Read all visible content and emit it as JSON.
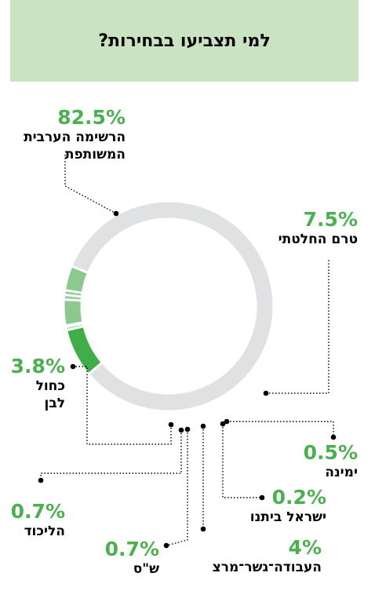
{
  "header": {
    "title": "למי תצביעו בבחירות?"
  },
  "colors": {
    "header_bg": "#c9e3c3",
    "accent": "#4caf50",
    "ring_base": "#e0e0e0"
  },
  "chart_data": {
    "type": "pie",
    "title": "למי תצביעו בבחירות?",
    "variant": "donut",
    "slices": [
      {
        "label": "הרשימה הערבית המשותפת",
        "value": 82.5,
        "pct_label": "82.5%",
        "color": "#e0e1e2"
      },
      {
        "label": "טרם החלטתי",
        "value": 7.5,
        "pct_label": "7.5%",
        "color": "#3fae49"
      },
      {
        "label": "ימינה",
        "value": 0.5,
        "pct_label": "0.5%",
        "color": "#8cc98f"
      },
      {
        "label": "ישראל ביתנו",
        "value": 0.2,
        "pct_label": "0.2%",
        "color": "#8cc98f"
      },
      {
        "label": "העבודה־גשר־מרצ",
        "value": 4,
        "pct_label": "4%",
        "color": "#8cc98f"
      },
      {
        "label": "ש\"ס",
        "value": 0.7,
        "pct_label": "0.7%",
        "color": "#8cc98f"
      },
      {
        "label": "הליכוד",
        "value": 0.7,
        "pct_label": "0.7%",
        "color": "#8cc98f"
      },
      {
        "label": "כחול לבן",
        "value": 3.8,
        "pct_label": "3.8%",
        "color": "#8cc98f"
      }
    ]
  }
}
